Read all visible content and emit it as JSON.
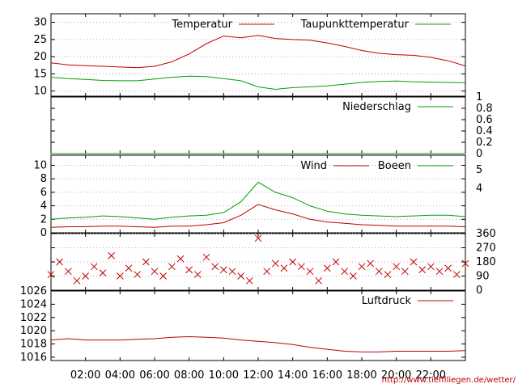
{
  "footer_url": "http://www.tiefflliegen.de/wetter/",
  "colors": {
    "primary": "#c00000",
    "secondary": "#00a000",
    "grid": "#c0a0d0"
  },
  "chart_data": [
    {
      "type": "line",
      "name": "temperature",
      "title": "",
      "series": [
        {
          "name": "Temperatur",
          "color": "#c00000",
          "x": [
            0,
            1,
            2,
            3,
            4,
            5,
            6,
            7,
            8,
            9,
            10,
            11,
            12,
            13,
            14,
            15,
            16,
            17,
            18,
            19,
            20,
            21,
            22,
            23,
            24
          ],
          "y": [
            18.2,
            17.6,
            17.4,
            17.2,
            17.0,
            16.8,
            17.2,
            18.5,
            20.8,
            23.8,
            26.0,
            25.5,
            26.2,
            25.3,
            25.0,
            24.8,
            24.0,
            23.0,
            21.8,
            21.0,
            20.6,
            20.4,
            19.8,
            18.8,
            17.3
          ]
        },
        {
          "name": "Taupunkttemperatur",
          "color": "#00a000",
          "x": [
            0,
            1,
            2,
            3,
            4,
            5,
            6,
            7,
            8,
            9,
            10,
            11,
            12,
            13,
            14,
            15,
            16,
            17,
            18,
            19,
            20,
            21,
            22,
            23,
            24
          ],
          "y": [
            14.0,
            13.6,
            13.4,
            13.1,
            13.0,
            13.0,
            13.5,
            14.0,
            14.3,
            14.2,
            13.6,
            13.0,
            11.2,
            10.5,
            11.0,
            11.2,
            11.5,
            12.0,
            12.5,
            12.8,
            12.9,
            12.7,
            12.6,
            12.5,
            12.4
          ]
        }
      ],
      "ylim": [
        8.5,
        32.5
      ],
      "yticks": [
        10,
        15,
        20,
        25,
        30
      ],
      "grid": true,
      "legend": "top"
    },
    {
      "type": "line",
      "name": "precipitation",
      "title": "",
      "series": [
        {
          "name": "Niederschlag",
          "color": "#00a000",
          "x": [
            0,
            24
          ],
          "y": [
            0,
            0
          ]
        }
      ],
      "ylim": [
        0,
        1
      ],
      "yticks": [
        0,
        0.2,
        0.4,
        0.6,
        0.8,
        1
      ],
      "ytick_labels": [
        "0",
        "0.2",
        "0.4",
        "0.6",
        "0.8",
        "1"
      ],
      "grid": false,
      "legend": "top-right"
    },
    {
      "type": "line",
      "name": "wind",
      "title": "",
      "series": [
        {
          "name": "Wind",
          "color": "#c00000",
          "x": [
            0,
            1,
            2,
            3,
            4,
            5,
            6,
            7,
            8,
            9,
            10,
            11,
            12,
            13,
            14,
            15,
            16,
            17,
            18,
            19,
            20,
            21,
            22,
            23,
            24
          ],
          "y": [
            0.8,
            0.9,
            0.9,
            1.0,
            1.0,
            0.9,
            0.8,
            1.0,
            1.0,
            1.2,
            1.5,
            2.6,
            4.2,
            3.4,
            2.8,
            2.0,
            1.6,
            1.4,
            1.2,
            1.1,
            1.0,
            1.0,
            1.0,
            1.0,
            0.9
          ]
        },
        {
          "name": "Boeen",
          "color": "#00a000",
          "x": [
            0,
            1,
            2,
            3,
            4,
            5,
            6,
            7,
            8,
            9,
            10,
            11,
            12,
            13,
            14,
            15,
            16,
            17,
            18,
            19,
            20,
            21,
            22,
            23,
            24
          ],
          "y": [
            2.0,
            2.2,
            2.3,
            2.5,
            2.4,
            2.2,
            2.0,
            2.3,
            2.5,
            2.6,
            3.0,
            4.6,
            7.5,
            6.0,
            5.2,
            4.0,
            3.2,
            2.8,
            2.6,
            2.5,
            2.4,
            2.5,
            2.6,
            2.6,
            2.4
          ]
        }
      ],
      "ylim": [
        0,
        11.5
      ],
      "yticks": [
        0,
        2,
        4,
        6,
        8,
        10
      ],
      "right_ytick_labels": [
        "4",
        "5"
      ],
      "grid": true,
      "legend": "top-right"
    },
    {
      "type": "scatter",
      "name": "wind_direction",
      "title": "",
      "series": [
        {
          "name": "",
          "color": "#c00000",
          "marker": "x",
          "x": [
            0,
            0.5,
            1,
            1.5,
            2,
            2.5,
            3,
            3.5,
            4,
            4.5,
            5,
            5.5,
            6,
            6.5,
            7,
            7.5,
            8,
            8.5,
            9,
            9.5,
            10,
            10.5,
            11,
            11.5,
            12,
            12.5,
            13,
            13.5,
            14,
            14.5,
            15,
            15.5,
            16,
            16.5,
            17,
            17.5,
            18,
            18.5,
            19,
            19.5,
            20,
            20.5,
            21,
            21.5,
            22,
            22.5,
            23,
            23.5,
            24
          ],
          "y": [
            100,
            180,
            120,
            60,
            90,
            150,
            110,
            220,
            90,
            140,
            100,
            180,
            120,
            90,
            150,
            200,
            130,
            100,
            210,
            150,
            130,
            120,
            90,
            60,
            330,
            120,
            170,
            140,
            180,
            150,
            120,
            60,
            140,
            180,
            120,
            90,
            150,
            170,
            120,
            100,
            150,
            120,
            180,
            130,
            150,
            120,
            140,
            100,
            170
          ]
        }
      ],
      "ylim": [
        0,
        360
      ],
      "yticks": [
        0,
        90,
        180,
        270,
        360
      ],
      "grid": true,
      "legend": "none"
    },
    {
      "type": "line",
      "name": "pressure",
      "title": "",
      "series": [
        {
          "name": "Luftdruck",
          "color": "#c00000",
          "x": [
            0,
            1,
            2,
            3,
            4,
            5,
            6,
            7,
            8,
            9,
            10,
            11,
            12,
            13,
            14,
            15,
            16,
            17,
            18,
            19,
            20,
            21,
            22,
            23,
            24
          ],
          "y": [
            1018.6,
            1018.8,
            1018.6,
            1018.6,
            1018.6,
            1018.7,
            1018.8,
            1019.0,
            1019.1,
            1019.0,
            1018.9,
            1018.6,
            1018.4,
            1018.2,
            1017.9,
            1017.5,
            1017.2,
            1016.9,
            1016.8,
            1016.8,
            1016.9,
            1016.9,
            1016.9,
            1016.9,
            1017.0
          ]
        }
      ],
      "ylim": [
        1015.5,
        1026
      ],
      "yticks": [
        1016,
        1018,
        1020,
        1022,
        1024,
        1026
      ],
      "xticks": [
        2,
        4,
        6,
        8,
        10,
        12,
        14,
        16,
        18,
        20,
        22
      ],
      "xtick_labels": [
        "02:00",
        "04:00",
        "06:00",
        "08:00",
        "10:00",
        "12:00",
        "14:00",
        "16:00",
        "18:00",
        "20:00",
        "22:00"
      ],
      "grid": false,
      "legend": "top-right"
    }
  ]
}
